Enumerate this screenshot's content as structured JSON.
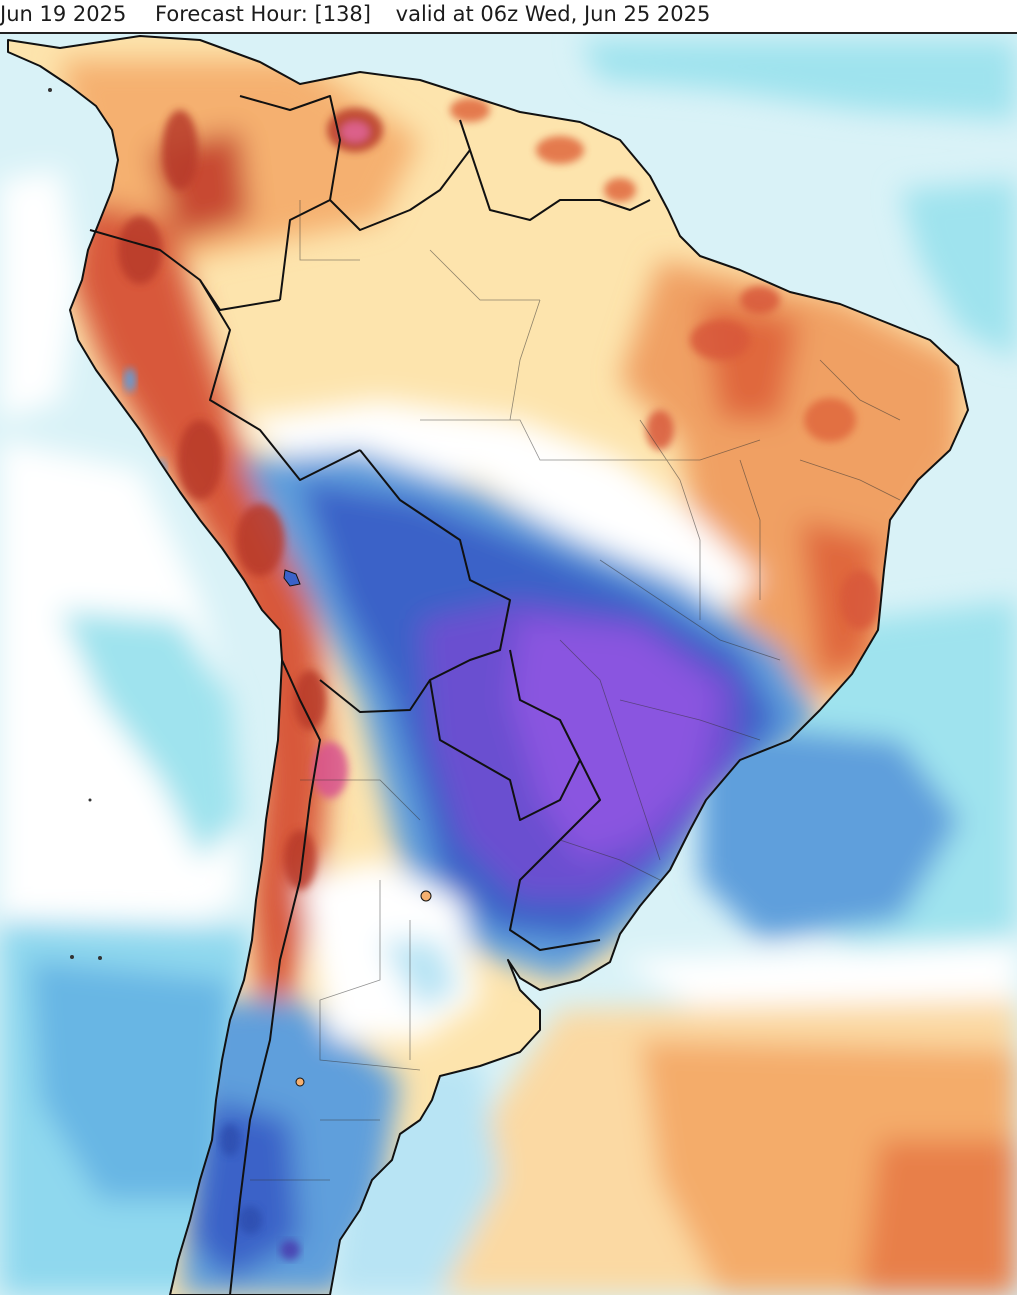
{
  "header": {
    "run_date": "Jun 19 2025",
    "forecast_hour": "Forecast Hour: [138]",
    "valid_time": "valid at 06z Wed, Jun 25 2025"
  },
  "map": {
    "region": "South America",
    "colors": {
      "ocean_base": "#d4f0f6",
      "ocean_cyan": "#9fe3ee",
      "white": "#ffffff",
      "warm_light": "#fde4ad",
      "warm_mid": "#f5b070",
      "warm_strong": "#e0683c",
      "warm_hot": "#b83a2c",
      "warm_peak": "#d8538f",
      "cold_light": "#b8e4f4",
      "cold_mid": "#5f9fdc",
      "cold_strong": "#3b62c8",
      "cold_deep": "#4a3fb0",
      "cold_purple": "#8a4fe0",
      "border": "#111111"
    }
  }
}
